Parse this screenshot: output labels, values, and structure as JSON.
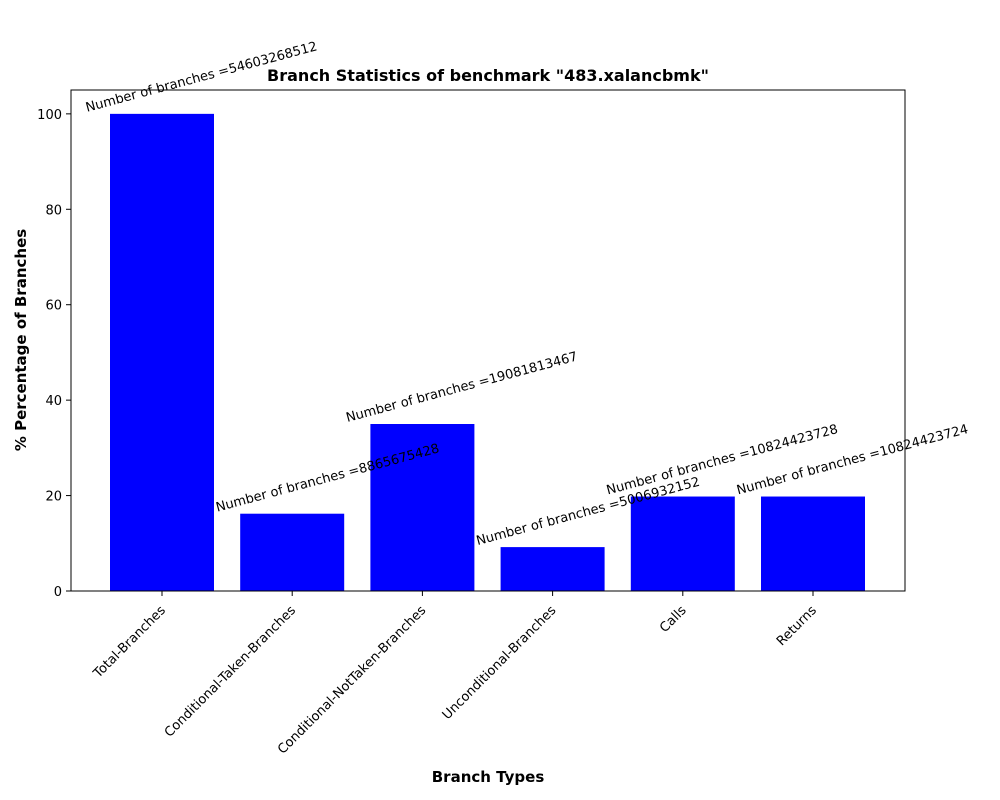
{
  "chart_data": {
    "type": "bar",
    "title": "Branch Statistics of benchmark \"483.xalancbmk\"",
    "xlabel": "Branch Types",
    "ylabel": "% Percentage of Branches",
    "ylim": [
      0,
      105
    ],
    "yticks": [
      "0",
      "20",
      "40",
      "60",
      "80",
      "100"
    ],
    "grid": false,
    "bar_color": "#0000ff",
    "categories": [
      "Total-Branches",
      "Conditional-Taken-Branches",
      "Conditional-NotTaken-Branches",
      "Unconditional-Branches",
      "Calls",
      "Returns"
    ],
    "values": [
      100,
      16.2,
      35.0,
      9.2,
      19.8,
      19.8
    ],
    "annotations": [
      "Number of branches =54603268512",
      "Number of branches =8865675428",
      "Number of branches =19081813467",
      "Number of branches =5006932152",
      "Number of branches =10824423728",
      "Number of branches =10824423724"
    ]
  }
}
